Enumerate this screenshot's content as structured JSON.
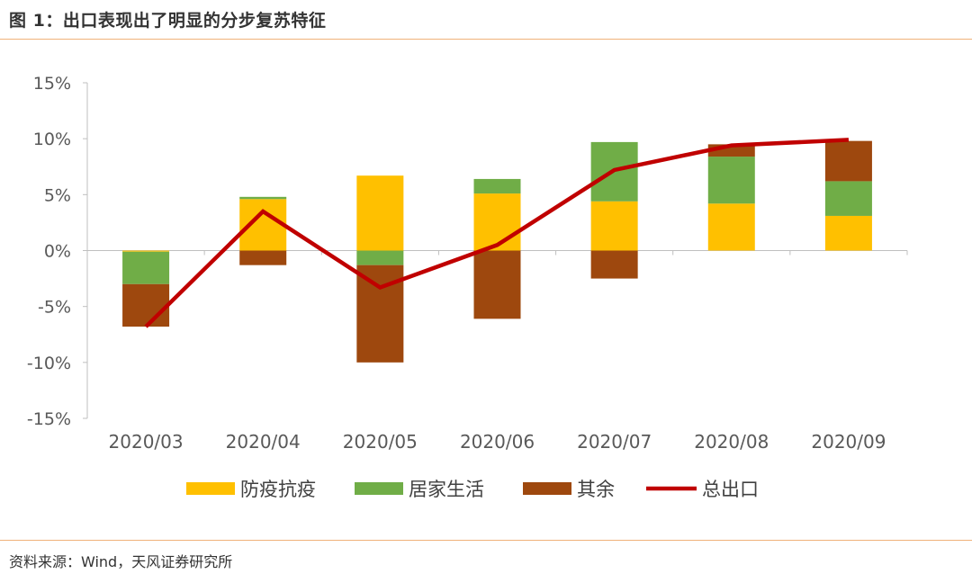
{
  "header": {
    "title": "图 1：出口表现出了明显的分步复苏特征"
  },
  "footer": {
    "source": "资料来源：Wind，天风证券研究所"
  },
  "colors": {
    "anti_epidemic": "#FFC000",
    "home_living": "#70AD47",
    "other": "#9E480E",
    "total": "#C00000",
    "axis": "#BFBFBF",
    "rule": "#F0B27A"
  },
  "chart_data": {
    "type": "bar",
    "stacked": true,
    "title": "出口表现出了明显的分步复苏特征",
    "xlabel": "",
    "ylabel": "",
    "ylim": [
      -15,
      15
    ],
    "yticks": [
      15,
      10,
      5,
      0,
      -5,
      -10,
      -15
    ],
    "ytick_labels": [
      "15%",
      "10%",
      "5%",
      "0%",
      "-5%",
      "-10%",
      "-15%"
    ],
    "categories": [
      "2020/03",
      "2020/04",
      "2020/05",
      "2020/06",
      "2020/07",
      "2020/08",
      "2020/09"
    ],
    "grid": false,
    "legend_position": "bottom",
    "series": [
      {
        "name": "防疫抗疫",
        "kind": "bar",
        "color": "#FFC000",
        "values": [
          -0.1,
          4.6,
          6.7,
          5.1,
          4.4,
          4.2,
          3.1
        ]
      },
      {
        "name": "居家生活",
        "kind": "bar",
        "color": "#70AD47",
        "values": [
          -2.9,
          0.2,
          -1.3,
          1.3,
          5.3,
          4.2,
          3.1
        ]
      },
      {
        "name": "其余",
        "kind": "bar",
        "color": "#9E480E",
        "values": [
          -3.8,
          -1.3,
          -8.7,
          -6.1,
          -2.5,
          1.1,
          3.6
        ]
      },
      {
        "name": "总出口",
        "kind": "line",
        "color": "#C00000",
        "values": [
          -6.8,
          3.5,
          -3.3,
          0.5,
          7.2,
          9.4,
          9.9
        ]
      }
    ]
  }
}
